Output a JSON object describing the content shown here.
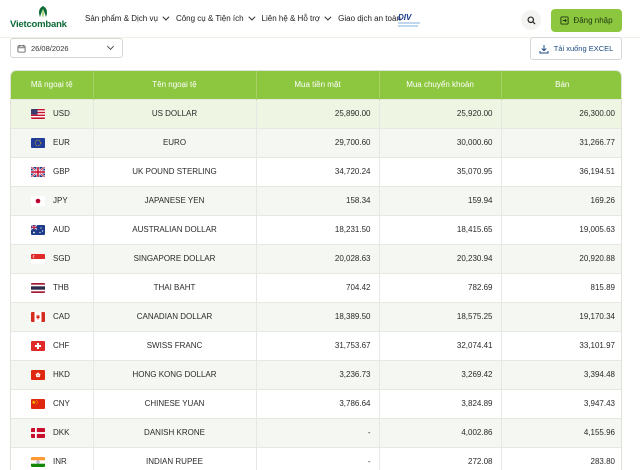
{
  "brand": {
    "name": "Vietcombank",
    "partner_logo_text": "DIV"
  },
  "nav": {
    "items": [
      {
        "label": "Sản phẩm & Dịch vụ",
        "dropdown": true
      },
      {
        "label": "Công cụ & Tiện ích",
        "dropdown": true
      },
      {
        "label": "Liên hệ & Hỗ trợ",
        "dropdown": true
      },
      {
        "label": "Giao dịch an toàn",
        "dropdown": false
      }
    ],
    "login_label": "Đăng nhập"
  },
  "toolbar": {
    "date_value": "26/08/2026",
    "download_label": "Tải xuống EXCEL"
  },
  "table": {
    "columns": [
      "Mã ngoại tệ",
      "Tên ngoại tệ",
      "Mua tiền mặt",
      "Mua chuyển khoản",
      "Bán"
    ],
    "rows": [
      {
        "code": "USD",
        "name": "US DOLLAR",
        "cash_buy": "25,890.00",
        "transfer_buy": "25,920.00",
        "sell": "26,300.00"
      },
      {
        "code": "EUR",
        "name": "EURO",
        "cash_buy": "29,700.60",
        "transfer_buy": "30,000.60",
        "sell": "31,266.77"
      },
      {
        "code": "GBP",
        "name": "UK POUND STERLING",
        "cash_buy": "34,720.24",
        "transfer_buy": "35,070.95",
        "sell": "36,194.51"
      },
      {
        "code": "JPY",
        "name": "JAPANESE YEN",
        "cash_buy": "158.34",
        "transfer_buy": "159.94",
        "sell": "169.26"
      },
      {
        "code": "AUD",
        "name": "AUSTRALIAN DOLLAR",
        "cash_buy": "18,231.50",
        "transfer_buy": "18,415.65",
        "sell": "19,005.63"
      },
      {
        "code": "SGD",
        "name": "SINGAPORE DOLLAR",
        "cash_buy": "20,028.63",
        "transfer_buy": "20,230.94",
        "sell": "20,920.88"
      },
      {
        "code": "THB",
        "name": "THAI BAHT",
        "cash_buy": "704.42",
        "transfer_buy": "782.69",
        "sell": "815.89"
      },
      {
        "code": "CAD",
        "name": "CANADIAN DOLLAR",
        "cash_buy": "18,389.50",
        "transfer_buy": "18,575.25",
        "sell": "19,170.34"
      },
      {
        "code": "CHF",
        "name": "SWISS FRANC",
        "cash_buy": "31,753.67",
        "transfer_buy": "32,074.41",
        "sell": "33,101.97"
      },
      {
        "code": "HKD",
        "name": "HONG KONG DOLLAR",
        "cash_buy": "3,236.73",
        "transfer_buy": "3,269.42",
        "sell": "3,394.48"
      },
      {
        "code": "CNY",
        "name": "CHINESE YUAN",
        "cash_buy": "3,786.64",
        "transfer_buy": "3,824.89",
        "sell": "3,947.43"
      },
      {
        "code": "DKK",
        "name": "DANISH KRONE",
        "cash_buy": "-",
        "transfer_buy": "4,002.86",
        "sell": "4,155.96"
      },
      {
        "code": "INR",
        "name": "INDIAN RUPEE",
        "cash_buy": "-",
        "transfer_buy": "272.08",
        "sell": "283.80"
      }
    ]
  },
  "colors": {
    "accent": "#8dc63f",
    "brand_green": "#0d6b3a",
    "link_blue": "#1a4a82"
  }
}
